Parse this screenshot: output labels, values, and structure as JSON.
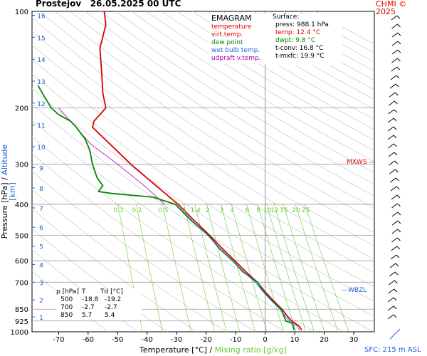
{
  "header": {
    "station": "Prostejov",
    "datetime": "26.05.2025 00 UTC",
    "credit": "CHMI © 2025"
  },
  "legend": {
    "title": "EMAGRAM",
    "items": [
      {
        "label": "temperature",
        "color": "#dd0000"
      },
      {
        "label": "virt.temp.",
        "color": "#dd0000"
      },
      {
        "label": "dew point",
        "color": "#008800"
      },
      {
        "label": "wet bulb temp.",
        "color": "#2266dd"
      },
      {
        "label": "udpraft v.temp.",
        "color": "#aa00aa"
      }
    ]
  },
  "surface": {
    "title": "Surface:",
    "press": "press: 988.1 hPa",
    "temp": "temp: 12.4 °C",
    "dwpt": "dwpt: 9.8 °C",
    "tconv": "t-conv: 16.8 °C",
    "tmxfc": "t-mxfc: 19.9 °C"
  },
  "table": {
    "headers": [
      "p [hPa]",
      "T",
      "Td [°C]"
    ],
    "rows": [
      [
        "500",
        "-18.8",
        "-19.2"
      ],
      [
        "700",
        "-2.7",
        "-2.7"
      ],
      [
        "850",
        "5.7",
        "5.4"
      ]
    ]
  },
  "axes": {
    "x_label_temp": "Temperature [°C]",
    "x_label_sep": "/",
    "x_label_mix": "Mixing ratio [g/kg]",
    "y_label_pressure": "Pressure [hPa]",
    "y_label_sep": "/",
    "y_label_altitude": "Altitude [km]",
    "sfc": "SFC: 215 m ASL",
    "mxws": "MXWS",
    "wbzl": "WBZL"
  },
  "colors": {
    "temperature": "#dd0000",
    "dewpoint": "#008800",
    "wetbulb": "#2266dd",
    "updraft": "#aa00aa",
    "mixing": "#66cc33",
    "altitude": "#1e5fd0",
    "grid": "#999999"
  },
  "chart_data": {
    "type": "line",
    "title": "EMAGRAM",
    "xlabel": "Temperature [°C] / Mixing ratio [g/kg]",
    "ylabel": "Pressure [hPa] / Altitude [km]",
    "xlim": [
      -79,
      37
    ],
    "ylim": [
      1000,
      100
    ],
    "y_scale": "log",
    "x_ticks": [
      -70,
      -60,
      -50,
      -40,
      -30,
      -20,
      -10,
      0,
      10,
      20,
      30
    ],
    "y_ticks": [
      100,
      200,
      300,
      400,
      500,
      600,
      700,
      850,
      925,
      1000
    ],
    "altitude_ticks_km": [
      1,
      2,
      3,
      4,
      5,
      6,
      7,
      8,
      9,
      10,
      11,
      12,
      13,
      14,
      15,
      16
    ],
    "mixing_ratio_labels": [
      "0.1",
      "0.2",
      "0.5",
      "1",
      "1.4",
      "2",
      "3",
      "4",
      "6",
      "8",
      "10",
      "12",
      "15",
      "20",
      "25"
    ],
    "series": [
      {
        "name": "temperature",
        "points": [
          [
            988,
            12.4
          ],
          [
            960,
            11.5
          ],
          [
            925,
            9.0
          ],
          [
            900,
            7.8
          ],
          [
            850,
            5.7
          ],
          [
            800,
            2.8
          ],
          [
            750,
            0.0
          ],
          [
            700,
            -2.7
          ],
          [
            650,
            -6.5
          ],
          [
            600,
            -10.3
          ],
          [
            550,
            -14.5
          ],
          [
            500,
            -18.8
          ],
          [
            450,
            -24.0
          ],
          [
            400,
            -29.5
          ],
          [
            350,
            -37.0
          ],
          [
            300,
            -45.5
          ],
          [
            260,
            -52.5
          ],
          [
            230,
            -58.5
          ],
          [
            220,
            -58.0
          ],
          [
            210,
            -56.0
          ],
          [
            200,
            -54.0
          ],
          [
            180,
            -55.0
          ],
          [
            150,
            -55.5
          ],
          [
            130,
            -56.0
          ],
          [
            120,
            -55.0
          ],
          [
            110,
            -54.0
          ],
          [
            100,
            -54.5
          ]
        ]
      },
      {
        "name": "dew point",
        "points": [
          [
            988,
            9.8
          ],
          [
            960,
            9.5
          ],
          [
            940,
            9.0
          ],
          [
            925,
            7.0
          ],
          [
            900,
            6.5
          ],
          [
            850,
            5.4
          ],
          [
            800,
            2.3
          ],
          [
            750,
            -0.5
          ],
          [
            700,
            -2.7
          ],
          [
            650,
            -7.5
          ],
          [
            600,
            -11.0
          ],
          [
            550,
            -15.5
          ],
          [
            500,
            -19.2
          ],
          [
            450,
            -25.0
          ],
          [
            400,
            -30.5
          ],
          [
            380,
            -38.0
          ],
          [
            370,
            -52.0
          ],
          [
            365,
            -56.5
          ],
          [
            350,
            -55.0
          ],
          [
            330,
            -57.0
          ],
          [
            300,
            -58.5
          ],
          [
            270,
            -59.5
          ],
          [
            250,
            -61.0
          ],
          [
            230,
            -64.0
          ],
          [
            220,
            -66.0
          ],
          [
            210,
            -70.0
          ],
          [
            200,
            -72.5
          ],
          [
            180,
            -75.5
          ],
          [
            170,
            -77.0
          ]
        ]
      }
    ]
  }
}
